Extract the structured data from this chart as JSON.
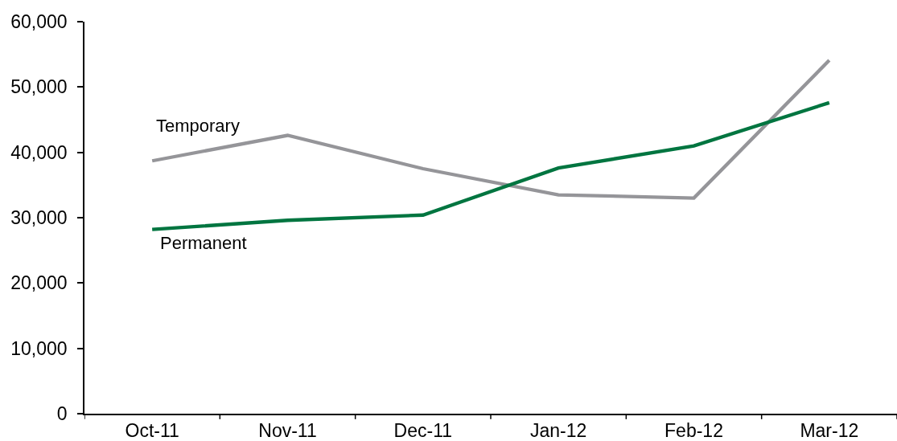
{
  "chart_data": {
    "type": "line",
    "categories": [
      "Oct-11",
      "Nov-11",
      "Dec-11",
      "Jan-12",
      "Feb-12",
      "Mar-12"
    ],
    "series": [
      {
        "name": "Temporary",
        "color": "#959599",
        "values": [
          38700,
          42600,
          37500,
          33500,
          33000,
          54100
        ]
      },
      {
        "name": "Permanent",
        "color": "#007540",
        "values": [
          28200,
          29600,
          30400,
          37600,
          41000,
          47600
        ]
      }
    ],
    "ylim": [
      0,
      60000
    ],
    "yticks": [
      0,
      {
        "value": 10000,
        "label": "10,000"
      },
      {
        "value": 20000,
        "label": "20,000"
      },
      {
        "value": 30000,
        "label": "30,000"
      },
      {
        "value": 40000,
        "label": "40,000"
      },
      {
        "value": 50000,
        "label": "50,000"
      },
      {
        "value": 60000,
        "label": "60,000"
      }
    ],
    "line_style": "solid",
    "grid": false,
    "legend": false
  }
}
